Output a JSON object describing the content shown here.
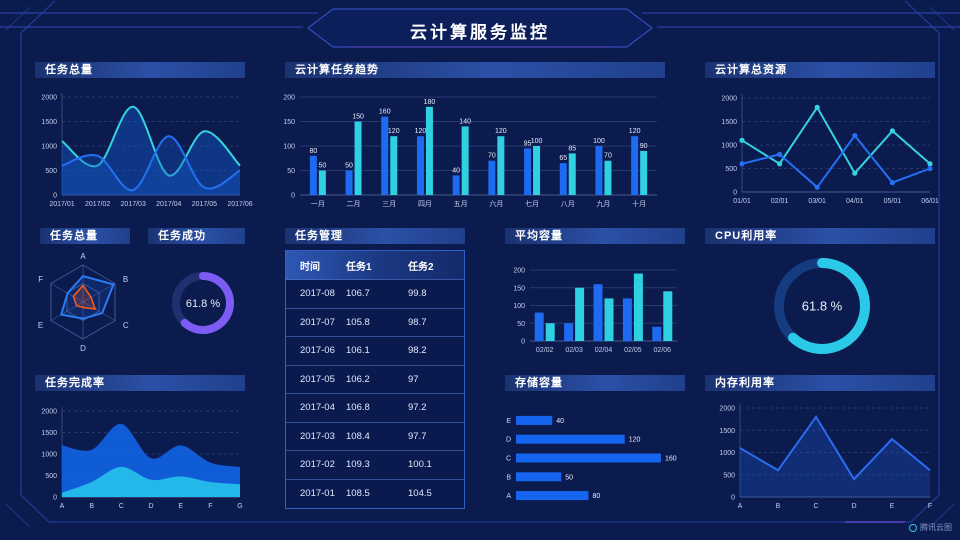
{
  "page": {
    "title": "云计算服务监控",
    "logo": "腾讯云图"
  },
  "colors": {
    "background": "#0B1B4E",
    "frame": "#2A49B4",
    "accent_purple": "#6A4FE0",
    "series_blue": "#2470F5",
    "series_cyan": "#35D3E0",
    "donut_purple": "#7D5CF5",
    "donut_cyan": "#2BC9E8",
    "radar_orange": "#FF5A1E"
  },
  "panels": {
    "task_total": {
      "title": "任务总量"
    },
    "task_trend": {
      "title": "云计算任务趋势"
    },
    "total_resource": {
      "title": "云计算总资源"
    },
    "task_radar": {
      "title": "任务总量"
    },
    "task_success": {
      "title": "任务成功"
    },
    "task_table": {
      "title": "任务管理"
    },
    "avg_capacity": {
      "title": "平均容量"
    },
    "cpu_usage": {
      "title": "CPU利用率"
    },
    "completion": {
      "title": "任务完成率"
    },
    "storage": {
      "title": "存储容量"
    },
    "memory": {
      "title": "内存利用率"
    }
  },
  "table": {
    "columns": [
      "时间",
      "任务1",
      "任务2"
    ],
    "rows": [
      [
        "2017-08",
        "106.7",
        "99.8"
      ],
      [
        "2017-07",
        "105.8",
        "98.7"
      ],
      [
        "2017-06",
        "106.1",
        "98.2"
      ],
      [
        "2017-05",
        "106.2",
        "97"
      ],
      [
        "2017-04",
        "106.8",
        "97.2"
      ],
      [
        "2017-03",
        "108.4",
        "97.7"
      ],
      [
        "2017-02",
        "109.3",
        "100.1"
      ],
      [
        "2017-01",
        "108.5",
        "104.5"
      ]
    ]
  },
  "chart_data": [
    {
      "id": "task_total",
      "type": "area",
      "title": "任务总量",
      "smooth": true,
      "x": [
        "2017/01",
        "2017/02",
        "2017/03",
        "2017/04",
        "2017/05",
        "2017/06"
      ],
      "ymax": 2000,
      "yticks": [
        0,
        500,
        1000,
        1500,
        2000
      ],
      "grid": "dashed",
      "series": [
        {
          "name": "cyan",
          "color": "#35D3E0",
          "fill": "#1458C8",
          "fillOpacity": 0.45,
          "values": [
            1100,
            600,
            1800,
            400,
            1300,
            600
          ]
        },
        {
          "name": "blue",
          "color": "#2470F5",
          "fill": "#1458C8",
          "fillOpacity": 0.35,
          "values": [
            600,
            800,
            100,
            1200,
            150,
            500
          ]
        }
      ]
    },
    {
      "id": "task_trend",
      "type": "bar",
      "title": "云计算任务趋势",
      "labels": true,
      "categories": [
        "一月",
        "二月",
        "三月",
        "四月",
        "五月",
        "六月",
        "七月",
        "八月",
        "九月",
        "十月"
      ],
      "ymax": 200,
      "yticks": [
        0,
        50,
        100,
        150,
        200
      ],
      "series": [
        {
          "name": "任务1",
          "color": "#1E6AF0",
          "values": [
            80,
            50,
            160,
            120,
            40,
            70,
            95,
            65,
            100,
            120
          ]
        },
        {
          "name": "任务2",
          "color": "#2FD0E2",
          "values": [
            50,
            150,
            120,
            180,
            140,
            120,
            100,
            85,
            70,
            90
          ]
        }
      ]
    },
    {
      "id": "total_resource",
      "type": "line",
      "title": "云计算总资源",
      "markers": true,
      "x": [
        "01/01",
        "02/01",
        "03/01",
        "04/01",
        "05/01",
        "06/01"
      ],
      "ymax": 2000,
      "yticks": [
        0,
        500,
        1000,
        1500,
        2000
      ],
      "grid": "dashed",
      "series": [
        {
          "name": "cyan",
          "color": "#35D3E0",
          "values": [
            1100,
            600,
            1800,
            400,
            1300,
            600
          ]
        },
        {
          "name": "blue",
          "color": "#2470F5",
          "values": [
            600,
            800,
            100,
            1200,
            200,
            500
          ]
        }
      ]
    },
    {
      "id": "task_radar",
      "type": "radar",
      "title": "任务总量",
      "indicators": [
        "A",
        "B",
        "C",
        "D",
        "E",
        "F"
      ],
      "max": 100,
      "series": [
        {
          "name": "blue",
          "color": "#2B7BF5",
          "fillOpacity": 0.15,
          "values": [
            70,
            95,
            60,
            45,
            68,
            48
          ]
        },
        {
          "name": "orange",
          "color": "#FF5A1E",
          "fillOpacity": 0.2,
          "values": [
            45,
            25,
            38,
            15,
            20,
            30
          ]
        }
      ]
    },
    {
      "id": "task_success",
      "type": "donut",
      "title": "任务成功",
      "value": 61.8,
      "label": "61.8 %",
      "color": "#7D5CF5",
      "track": "#20306F"
    },
    {
      "id": "avg_capacity",
      "type": "bar",
      "title": "平均容量",
      "labels": false,
      "categories": [
        "02/02",
        "02/03",
        "02/04",
        "02/05",
        "02/06"
      ],
      "ymax": 200,
      "yticks": [
        0,
        50,
        100,
        150,
        200
      ],
      "series": [
        {
          "name": "blue",
          "color": "#1E6AF0",
          "values": [
            80,
            50,
            160,
            120,
            40
          ]
        },
        {
          "name": "cyan",
          "color": "#2FD0E2",
          "values": [
            50,
            150,
            120,
            190,
            140
          ]
        }
      ]
    },
    {
      "id": "cpu_usage",
      "type": "donut",
      "title": "CPU利用率",
      "value": 61.8,
      "label": "61.8 %",
      "color": "#2BC9E8",
      "track": "#153B80"
    },
    {
      "id": "completion",
      "type": "area",
      "title": "任务完成率",
      "smooth": true,
      "x": [
        "A",
        "B",
        "C",
        "D",
        "E",
        "F",
        "G"
      ],
      "ymax": 2000,
      "yticks": [
        0,
        500,
        1000,
        1500,
        2000
      ],
      "grid": "dashed",
      "series": [
        {
          "name": "blue",
          "color": "#1565E0",
          "fill": "#1060DD",
          "fillOpacity": 0.95,
          "strokeWidth": 0,
          "values": [
            1200,
            1100,
            1700,
            900,
            1200,
            800,
            700
          ]
        },
        {
          "name": "cyan",
          "color": "#23B7EA",
          "fill": "#23B7EA",
          "fillOpacity": 1,
          "strokeWidth": 0,
          "values": [
            100,
            350,
            700,
            400,
            480,
            350,
            300
          ]
        }
      ]
    },
    {
      "id": "storage",
      "type": "hbar",
      "title": "存储容量",
      "categories": [
        "E",
        "D",
        "C",
        "B",
        "A"
      ],
      "values": [
        40,
        120,
        160,
        50,
        80
      ],
      "max": 170,
      "color": "#1565F0"
    },
    {
      "id": "memory",
      "type": "line",
      "title": "内存利用率",
      "markers": false,
      "x": [
        "A",
        "B",
        "C",
        "D",
        "E",
        "F"
      ],
      "ymax": 2000,
      "yticks": [
        0,
        500,
        1000,
        1500,
        2000
      ],
      "grid": "dashed",
      "series": [
        {
          "name": "blue",
          "color": "#2A6CF0",
          "fill": "#1E5AD0",
          "fillOpacity": 0.3,
          "area": true,
          "values": [
            1100,
            600,
            1800,
            400,
            1300,
            600
          ]
        }
      ]
    }
  ]
}
